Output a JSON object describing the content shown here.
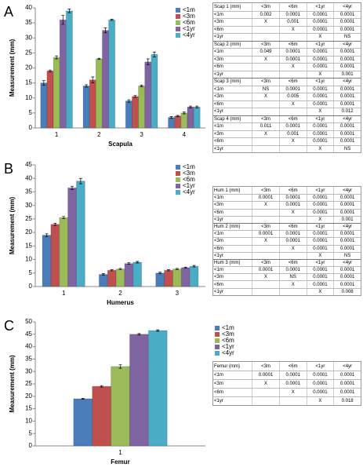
{
  "chart_data": [
    {
      "type": "bar",
      "panel": "A",
      "x_label": "Scapula",
      "y_label": "Measurement (mm)",
      "categories": [
        "1",
        "2",
        "3",
        "4"
      ],
      "ylim": [
        0,
        40
      ],
      "yticks": [
        0,
        5,
        10,
        15,
        20,
        25,
        30,
        35,
        40
      ],
      "grid": false,
      "legend": "upper right",
      "series": [
        {
          "name": "<1m",
          "color": "#4a7ebb",
          "values": [
            15,
            14,
            9,
            3.5
          ],
          "error": [
            0.8,
            0.4,
            0.4,
            0.3
          ]
        },
        {
          "name": "<3m",
          "color": "#c0504d",
          "values": [
            19,
            16,
            10.5,
            4
          ],
          "error": [
            0.3,
            1,
            0.3,
            0.2
          ]
        },
        {
          "name": "<6m",
          "color": "#9bbb59",
          "values": [
            23.5,
            23,
            14,
            5
          ],
          "error": [
            0.5,
            0.2,
            0.3,
            0.3
          ]
        },
        {
          "name": "<1yr",
          "color": "#8064a2",
          "values": [
            36,
            32.5,
            22,
            7
          ],
          "error": [
            1.5,
            0.8,
            1,
            0.3
          ]
        },
        {
          "name": "<4yr",
          "color": "#4bacc6",
          "values": [
            39,
            36,
            24.5,
            7
          ],
          "error": [
            0.6,
            0.2,
            0.8,
            0.3
          ]
        }
      ]
    },
    {
      "type": "bar",
      "panel": "B",
      "x_label": "Humerus",
      "y_label": "Measurement (mm)",
      "categories": [
        "1",
        "2",
        "3"
      ],
      "ylim": [
        0,
        45
      ],
      "yticks": [
        0,
        5,
        10,
        15,
        20,
        25,
        30,
        35,
        40,
        45
      ],
      "grid": false,
      "legend": "upper right",
      "series": [
        {
          "name": "<1m",
          "color": "#4a7ebb",
          "values": [
            19,
            4.5,
            5
          ],
          "error": [
            0.5,
            0.3,
            0.3
          ]
        },
        {
          "name": "<3m",
          "color": "#c0504d",
          "values": [
            23,
            6,
            6
          ],
          "error": [
            0.4,
            0.2,
            0.2
          ]
        },
        {
          "name": "<6m",
          "color": "#9bbb59",
          "values": [
            25.5,
            6.5,
            6.5
          ],
          "error": [
            0.4,
            0.2,
            0.2
          ]
        },
        {
          "name": "<1yr",
          "color": "#8064a2",
          "values": [
            36.5,
            8.5,
            7
          ],
          "error": [
            0.6,
            0.3,
            0.2
          ]
        },
        {
          "name": "<4yr",
          "color": "#4bacc6",
          "values": [
            39,
            9,
            7.5
          ],
          "error": [
            1,
            0.3,
            0.3
          ]
        }
      ]
    },
    {
      "type": "bar",
      "panel": "C",
      "x_label": "Femur",
      "y_label": "Measurement (mm)",
      "categories": [
        "1"
      ],
      "ylim": [
        0,
        50
      ],
      "yticks": [
        0,
        5,
        10,
        15,
        20,
        25,
        30,
        35,
        40,
        45,
        50
      ],
      "grid": false,
      "legend": "right",
      "series": [
        {
          "name": "<1m",
          "color": "#4a7ebb",
          "values": [
            19
          ],
          "error": [
            0.2
          ]
        },
        {
          "name": "<3m",
          "color": "#c0504d",
          "values": [
            24
          ],
          "error": [
            0.3
          ]
        },
        {
          "name": "<6m",
          "color": "#9bbb59",
          "values": [
            32
          ],
          "error": [
            0.7
          ]
        },
        {
          "name": "<1yr",
          "color": "#8064a2",
          "values": [
            45
          ],
          "error": [
            0.3
          ]
        },
        {
          "name": "<4yr",
          "color": "#4bacc6",
          "values": [
            46.5
          ],
          "error": [
            0.3
          ]
        }
      ]
    }
  ],
  "tables": [
    {
      "blocks": [
        {
          "header": [
            "Scap 1 (mm)",
            "<3m",
            "<6m",
            "<1yr",
            "<4yr"
          ],
          "rows": [
            [
              "<1m",
              "0.002",
              "0.0001",
              "0.0001",
              "0.0001"
            ],
            [
              "<3m",
              "X",
              "0.001",
              "0.0001",
              "0.0001"
            ],
            [
              "<6m",
              null,
              "X",
              "0.0001",
              "0.0001"
            ],
            [
              "<1yr",
              null,
              null,
              "X",
              "NS"
            ]
          ]
        },
        {
          "header": [
            "Scap 2 (mm)",
            "<3m",
            "<6m",
            "<1yr",
            "<4yr"
          ],
          "rows": [
            [
              "<1m",
              "0.049",
              "0.0001",
              "0.0001",
              "0.0001"
            ],
            [
              "<3m",
              "X",
              "0.0001",
              "0.0001",
              "0.0001"
            ],
            [
              "<6m",
              null,
              "X",
              "0.0001",
              "0.0001"
            ],
            [
              "<1yr",
              null,
              null,
              "X",
              "0.001"
            ]
          ]
        },
        {
          "header": [
            "Scap 3 (mm)",
            "<3m",
            "<6m",
            "<1yr",
            "<4yr"
          ],
          "rows": [
            [
              "<1m",
              "NS",
              "0.0001",
              "0.0001",
              "0.0001"
            ],
            [
              "<3m",
              "X",
              "0.005",
              "0.0001",
              "0.0001"
            ],
            [
              "<6m",
              null,
              "X",
              "0.0001",
              "0.0001"
            ],
            [
              "<1yr",
              null,
              null,
              "X",
              "0.012"
            ]
          ]
        },
        {
          "header": [
            "Scap 4 (mm)",
            "<3m",
            "<6m",
            "<1yr",
            "<4yr"
          ],
          "rows": [
            [
              "<1m",
              "0.011",
              "0.0001",
              "0.0001",
              "0.0001"
            ],
            [
              "<3m",
              "X",
              "0.001",
              "0.0001",
              "0.0001"
            ],
            [
              "<6m",
              null,
              "X",
              "0.0001",
              "0.0001"
            ],
            [
              "<1yr",
              null,
              null,
              "X",
              "NS"
            ]
          ]
        }
      ]
    },
    {
      "blocks": [
        {
          "header": [
            "Hum 1 (mm)",
            "<3m",
            "<6m",
            "<1yr",
            "<4yr"
          ],
          "rows": [
            [
              "<1m",
              "0.0001",
              "0.0001",
              "0.0001",
              "0.0001"
            ],
            [
              "<3m",
              "X",
              "0.0001",
              "0.0001",
              "0.0001"
            ],
            [
              "<6m",
              null,
              "X",
              "0.0001",
              "0.0001"
            ],
            [
              "<1yr",
              null,
              null,
              "X",
              "0.001"
            ]
          ]
        },
        {
          "header": [
            "Hum 2 (mm)",
            "<3m",
            "<6m",
            "<1yr",
            "<4yr"
          ],
          "rows": [
            [
              "<1m",
              "0.0001",
              "0.0001",
              "0.0001",
              "0.0001"
            ],
            [
              "<3m",
              "X",
              "0.0001",
              "0.0001",
              "0.0001"
            ],
            [
              "<6m",
              null,
              "X",
              "0.0001",
              "0.0001"
            ],
            [
              "<1yr",
              null,
              null,
              "X",
              "NS"
            ]
          ]
        },
        {
          "header": [
            "Hum 3 (mm)",
            "<3m",
            "<6m",
            "<1yr",
            "<4yr"
          ],
          "rows": [
            [
              "<1m",
              "0.0001",
              "0.0001",
              "0.0001",
              "0.0001"
            ],
            [
              "<3m",
              "X",
              "NS",
              "0.0001",
              "0.0001"
            ],
            [
              "<6m",
              null,
              "X",
              "0.0001",
              "0.0001"
            ],
            [
              "<1yr",
              null,
              null,
              "X",
              "0.008"
            ]
          ]
        }
      ]
    },
    {
      "blocks": [
        {
          "header": [
            "Femur (mm)",
            "<3m",
            "<6m",
            "<1yr",
            "<4yr"
          ],
          "rows": [
            [
              "<1m",
              "0.0001",
              "0.0001",
              "0.0001",
              "0.0001"
            ],
            [
              "<3m",
              "X",
              "0.0001",
              "0.0001",
              "0.0001"
            ],
            [
              "<6m",
              null,
              "X",
              "0.0001",
              "0.0001"
            ],
            [
              "<1yr",
              null,
              null,
              "X",
              "0.018"
            ]
          ]
        }
      ]
    }
  ]
}
